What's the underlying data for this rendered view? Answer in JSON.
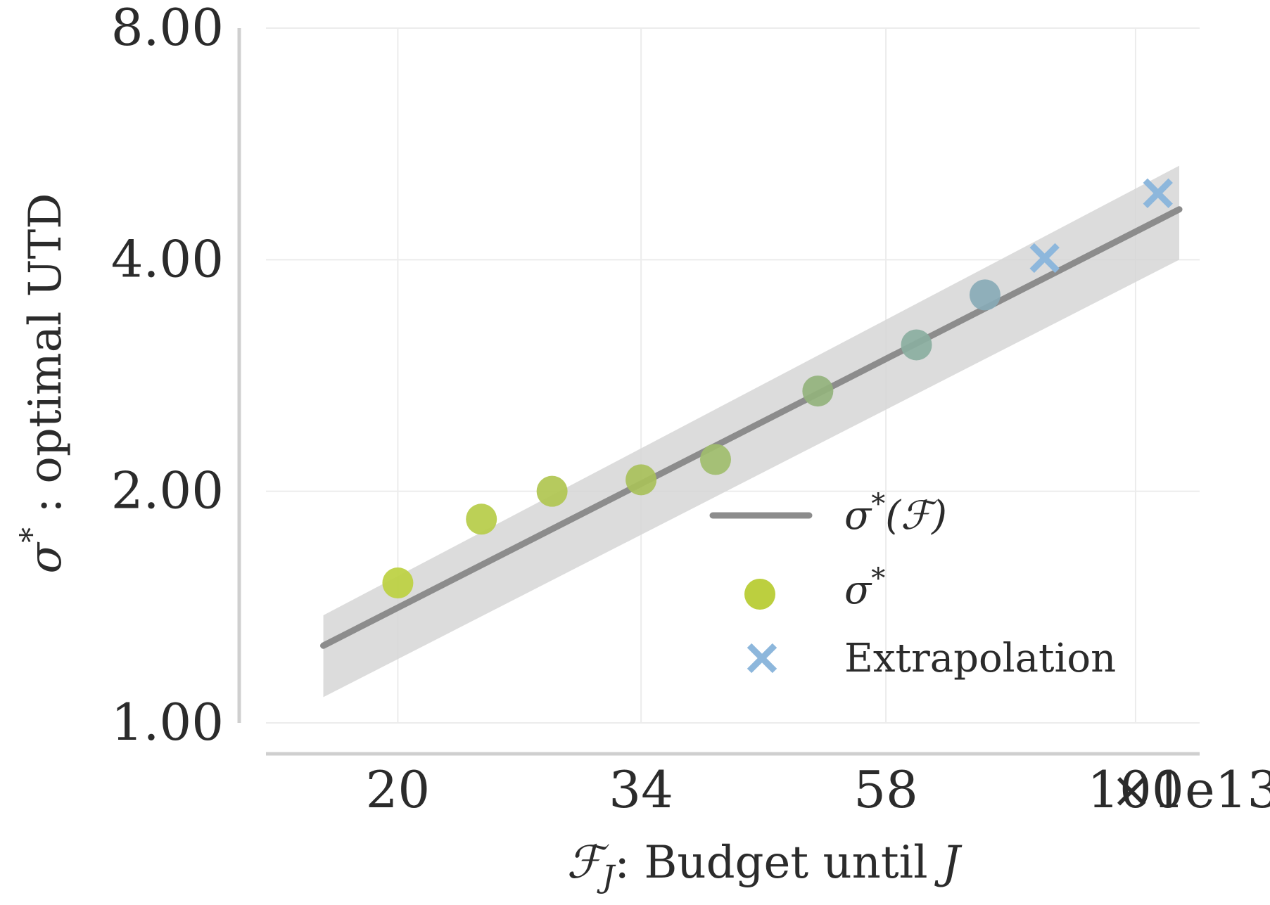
{
  "chart_data": {
    "type": "scatter",
    "xscale": "log",
    "yscale": "log",
    "x_multiplier": "×1e13",
    "xlim": [
      15.0,
      115.0
    ],
    "ylim": [
      1.0,
      8.0
    ],
    "xticks": [
      20,
      34,
      58,
      100
    ],
    "xtick_labels": [
      "20",
      "34",
      "58",
      "100"
    ],
    "yticks": [
      1.0,
      2.0,
      4.0,
      8.0
    ],
    "ytick_labels": [
      "1.00",
      "2.00",
      "4.00",
      "8.00"
    ],
    "xlabel": {
      "symbol": "ℱ",
      "subscript": "J",
      "text": ": Budget until ",
      "var": "J"
    },
    "ylabel": {
      "symbol": "σ",
      "superscript": "*",
      "text": " : optimal UTD"
    },
    "grid": true,
    "legend_position": "lower-right",
    "series": [
      {
        "name": "σ*(ℱ)",
        "kind": "fit_line",
        "color": "#8c8c8c",
        "x": [
          17,
          110
        ],
        "y": [
          1.26,
          4.65
        ]
      },
      {
        "name": "σ*(ℱ) band",
        "kind": "confidence_band",
        "color": "#d6d6d6",
        "x": [
          17,
          110
        ],
        "y_low": [
          1.08,
          4.0
        ],
        "y_high": [
          1.38,
          5.3
        ]
      },
      {
        "name": "σ*",
        "kind": "points",
        "color": "#bccf3f",
        "x": [
          20,
          24,
          28,
          34,
          40,
          50,
          62,
          72
        ],
        "y": [
          1.52,
          1.84,
          2.0,
          2.07,
          2.2,
          2.7,
          3.1,
          3.6
        ],
        "colors": [
          "#bcd040",
          "#b6cc48",
          "#b0c650",
          "#a8c05a",
          "#a0bd6c",
          "#92b27c",
          "#8aaea0",
          "#88aab6"
        ]
      },
      {
        "name": "Extrapolation",
        "kind": "x_marker",
        "color": "#8db7dc",
        "x": [
          82,
          105
        ],
        "y": [
          4.02,
          4.88
        ]
      }
    ],
    "legend": [
      {
        "label_main": "σ",
        "label_sup": "*",
        "label_rest": "(ℱ)",
        "marker": "line",
        "color": "#8c8c8c"
      },
      {
        "label_main": "σ",
        "label_sup": "*",
        "label_rest": "",
        "marker": "circle",
        "color": "#bccf3f"
      },
      {
        "label_main": "Extrapolation",
        "label_sup": "",
        "label_rest": "",
        "marker": "x",
        "color": "#8db7dc"
      }
    ]
  }
}
